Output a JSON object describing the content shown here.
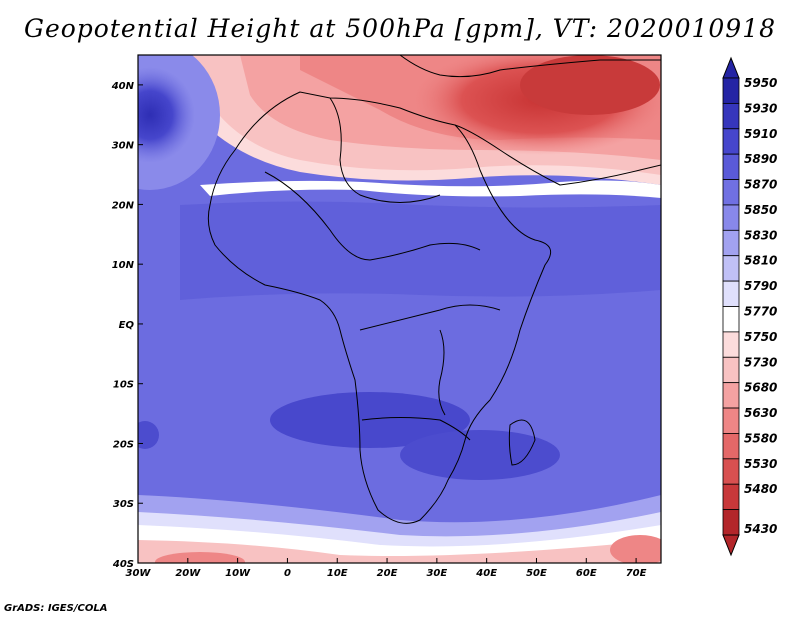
{
  "title": "Geopotential Height at 500hPa [gpm], VT: 2020010918",
  "credit": "GrADS: IGES/COLA",
  "chart_data": {
    "type": "heatmap",
    "variable": "Geopotential Height at 500hPa",
    "units": "gpm",
    "valid_time": "2020010918",
    "lon_range": [
      -30,
      75
    ],
    "lat_range": [
      -40,
      45
    ],
    "x_ticks": [
      "30W",
      "20W",
      "10W",
      "0",
      "10E",
      "20E",
      "30E",
      "40E",
      "50E",
      "60E",
      "70E"
    ],
    "y_ticks": [
      "40S",
      "30S",
      "20S",
      "10S",
      "EQ",
      "10N",
      "20N",
      "30N",
      "40N"
    ],
    "colorbar_levels": [
      5430,
      5480,
      5530,
      5580,
      5630,
      5680,
      5730,
      5750,
      5770,
      5790,
      5810,
      5830,
      5850,
      5870,
      5890,
      5910,
      5930,
      5950
    ],
    "colorbar_colors": [
      "#b3262a",
      "#c8383a",
      "#d85050",
      "#e46868",
      "#ee8686",
      "#f4a2a2",
      "#f8c2c2",
      "#fcdcdc",
      "#ffffff",
      "#e0e0fc",
      "#c0c0f6",
      "#a2a2f0",
      "#8888ea",
      "#7070e2",
      "#5a5ad8",
      "#4646cc",
      "#3636bc",
      "#2424a4"
    ]
  }
}
